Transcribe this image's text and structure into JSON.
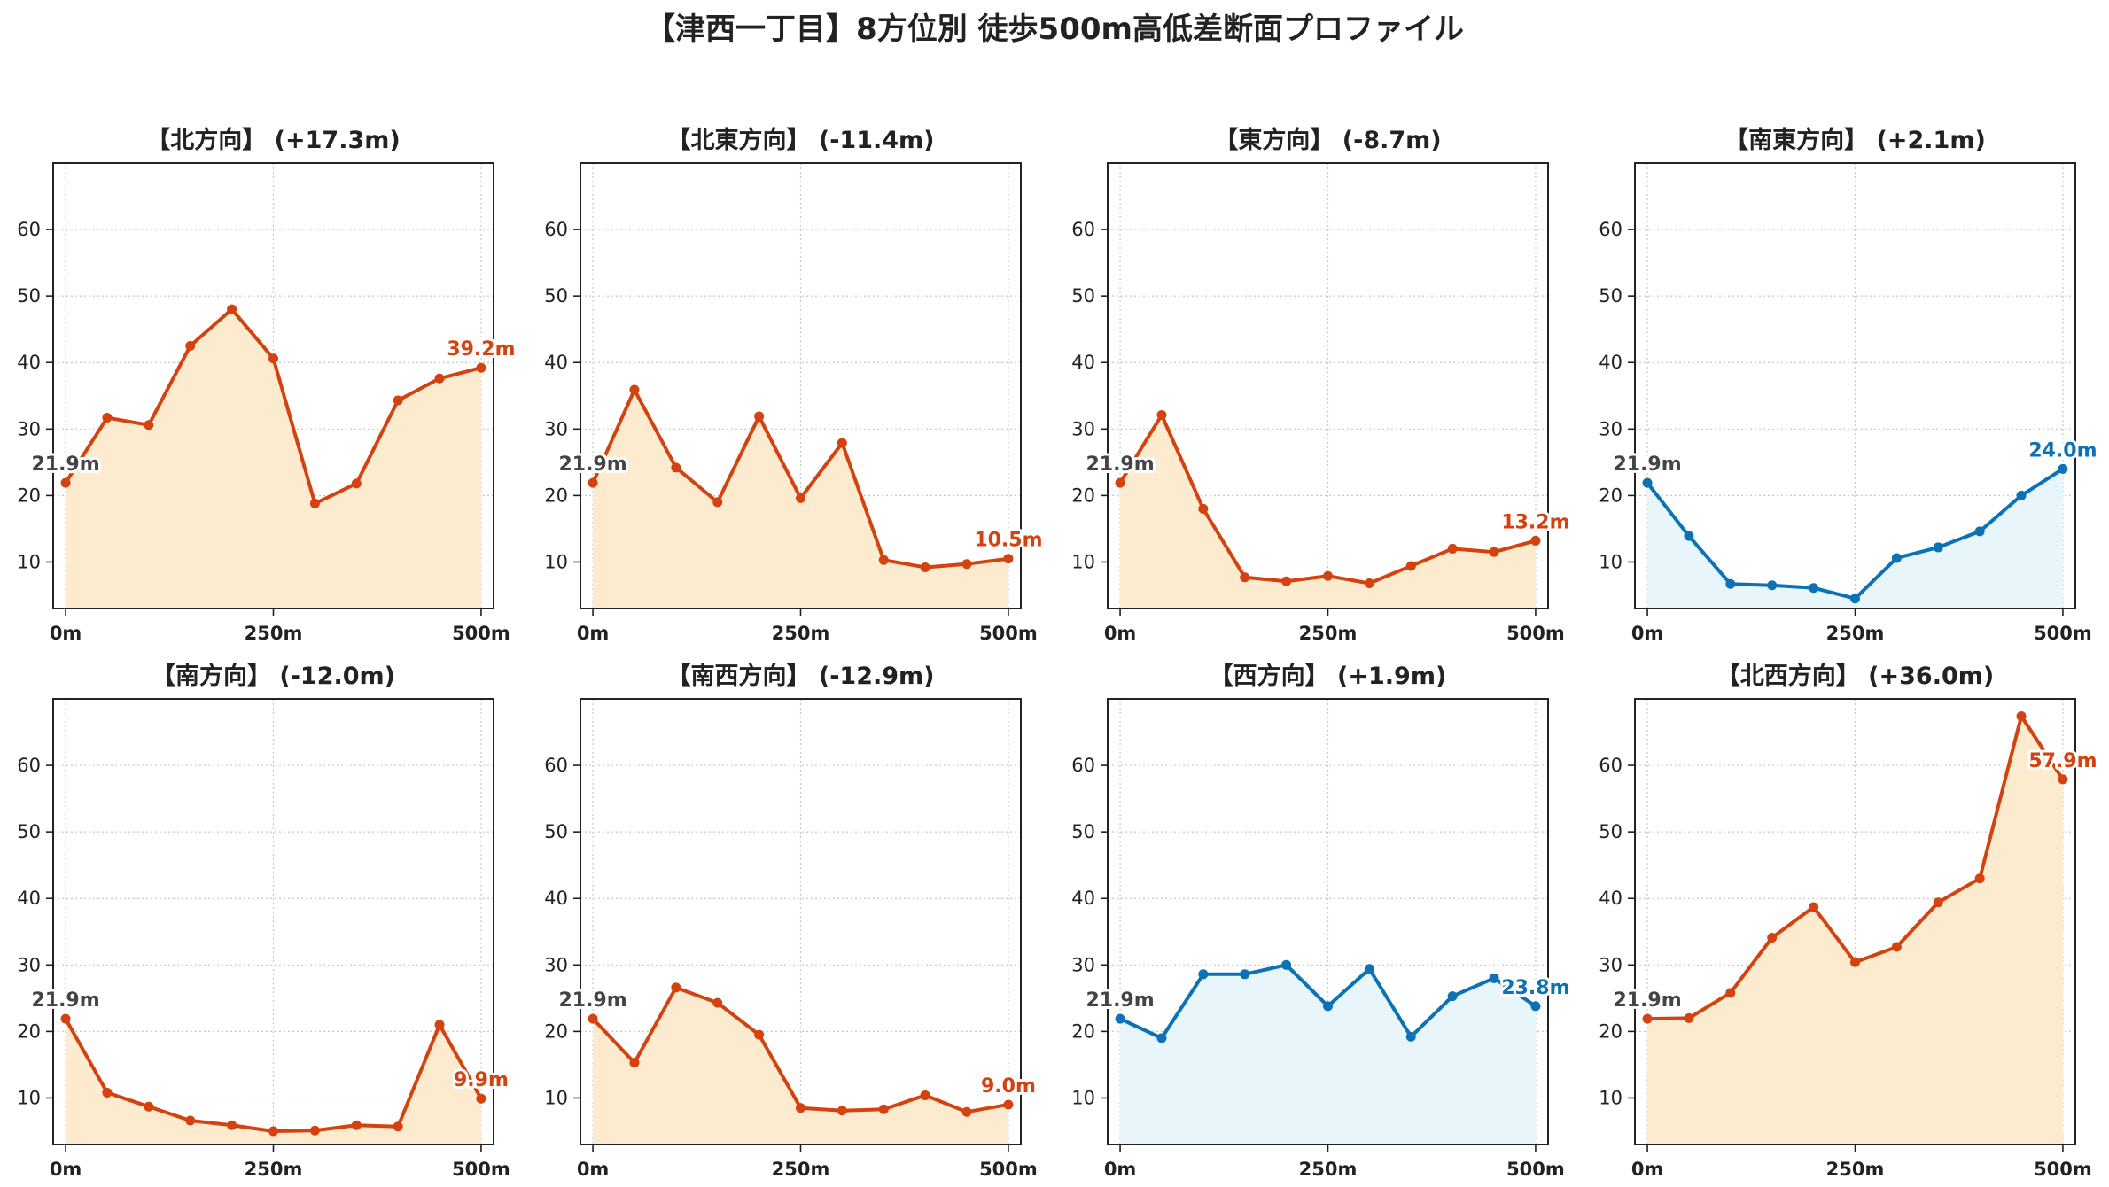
{
  "title": "【津西一丁目】8方位別 徒歩500m高低差断面プロファイル",
  "colors": {
    "up_line": "#d4420f",
    "up_fill": "#fdebd0",
    "down_line": "#0a72b5",
    "down_fill": "#e8f5fb",
    "start_label": "#444444",
    "grid": "#c8c8c8"
  },
  "chart_data": [
    {
      "type": "area",
      "title": "【北方向】 (+17.3m)",
      "x": [
        0,
        50,
        100,
        150,
        200,
        250,
        300,
        350,
        400,
        450,
        500
      ],
      "values": [
        21.9,
        31.7,
        30.6,
        42.5,
        48.0,
        40.6,
        18.8,
        21.8,
        34.3,
        37.6,
        39.2
      ],
      "start_label": "21.9m",
      "end_label": "39.2m",
      "color_scheme": "up",
      "xticks": [
        0,
        250,
        500
      ],
      "xtick_labels": [
        "0m",
        "250m",
        "500m"
      ],
      "yticks": [
        10,
        20,
        30,
        40,
        50,
        60
      ],
      "ylim": [
        3,
        70
      ],
      "xlim": [
        -15,
        515
      ],
      "grid": true
    },
    {
      "type": "area",
      "title": "【北東方向】 (-11.4m)",
      "x": [
        0,
        50,
        100,
        150,
        200,
        250,
        300,
        350,
        400,
        450,
        500
      ],
      "values": [
        21.9,
        35.9,
        24.2,
        19.0,
        31.9,
        19.6,
        27.9,
        10.3,
        9.2,
        9.7,
        10.5
      ],
      "start_label": "21.9m",
      "end_label": "10.5m",
      "color_scheme": "up",
      "xticks": [
        0,
        250,
        500
      ],
      "xtick_labels": [
        "0m",
        "250m",
        "500m"
      ],
      "yticks": [
        10,
        20,
        30,
        40,
        50,
        60
      ],
      "ylim": [
        3,
        70
      ],
      "xlim": [
        -15,
        515
      ],
      "grid": true
    },
    {
      "type": "area",
      "title": "【東方向】 (-8.7m)",
      "x": [
        0,
        50,
        100,
        150,
        200,
        250,
        300,
        350,
        400,
        450,
        500
      ],
      "values": [
        21.9,
        32.1,
        18.0,
        7.7,
        7.1,
        7.9,
        6.8,
        9.4,
        12.0,
        11.5,
        13.2
      ],
      "start_label": "21.9m",
      "end_label": "13.2m",
      "color_scheme": "up",
      "xticks": [
        0,
        250,
        500
      ],
      "xtick_labels": [
        "0m",
        "250m",
        "500m"
      ],
      "yticks": [
        10,
        20,
        30,
        40,
        50,
        60
      ],
      "ylim": [
        3,
        70
      ],
      "xlim": [
        -15,
        515
      ],
      "grid": true
    },
    {
      "type": "area",
      "title": "【南東方向】 (+2.1m)",
      "x": [
        0,
        50,
        100,
        150,
        200,
        250,
        300,
        350,
        400,
        450,
        500
      ],
      "values": [
        21.9,
        13.9,
        6.7,
        6.5,
        6.1,
        4.5,
        10.6,
        12.2,
        14.6,
        20.0,
        24.0
      ],
      "start_label": "21.9m",
      "end_label": "24.0m",
      "color_scheme": "down",
      "xticks": [
        0,
        250,
        500
      ],
      "xtick_labels": [
        "0m",
        "250m",
        "500m"
      ],
      "yticks": [
        10,
        20,
        30,
        40,
        50,
        60
      ],
      "ylim": [
        3,
        70
      ],
      "xlim": [
        -15,
        515
      ],
      "grid": true
    },
    {
      "type": "area",
      "title": "【南方向】 (-12.0m)",
      "x": [
        0,
        50,
        100,
        150,
        200,
        250,
        300,
        350,
        400,
        450,
        500
      ],
      "values": [
        21.9,
        10.8,
        8.7,
        6.6,
        5.9,
        5.0,
        5.1,
        5.9,
        5.7,
        21.0,
        9.9
      ],
      "start_label": "21.9m",
      "end_label": "9.9m",
      "color_scheme": "up",
      "xticks": [
        0,
        250,
        500
      ],
      "xtick_labels": [
        "0m",
        "250m",
        "500m"
      ],
      "yticks": [
        10,
        20,
        30,
        40,
        50,
        60
      ],
      "ylim": [
        3,
        70
      ],
      "xlim": [
        -15,
        515
      ],
      "grid": true
    },
    {
      "type": "area",
      "title": "【南西方向】 (-12.9m)",
      "x": [
        0,
        50,
        100,
        150,
        200,
        250,
        300,
        350,
        400,
        450,
        500
      ],
      "values": [
        21.9,
        15.3,
        26.6,
        24.3,
        19.5,
        8.5,
        8.1,
        8.3,
        10.4,
        7.9,
        9.0
      ],
      "start_label": "21.9m",
      "end_label": "9.0m",
      "color_scheme": "up",
      "xticks": [
        0,
        250,
        500
      ],
      "xtick_labels": [
        "0m",
        "250m",
        "500m"
      ],
      "yticks": [
        10,
        20,
        30,
        40,
        50,
        60
      ],
      "ylim": [
        3,
        70
      ],
      "xlim": [
        -15,
        515
      ],
      "grid": true
    },
    {
      "type": "area",
      "title": "【西方向】 (+1.9m)",
      "x": [
        0,
        50,
        100,
        150,
        200,
        250,
        300,
        350,
        400,
        450,
        500
      ],
      "values": [
        21.9,
        19.0,
        28.6,
        28.6,
        30.0,
        23.8,
        29.4,
        19.2,
        25.3,
        28.0,
        23.8
      ],
      "start_label": "21.9m",
      "end_label": "23.8m",
      "color_scheme": "down",
      "xticks": [
        0,
        250,
        500
      ],
      "xtick_labels": [
        "0m",
        "250m",
        "500m"
      ],
      "yticks": [
        10,
        20,
        30,
        40,
        50,
        60
      ],
      "ylim": [
        3,
        70
      ],
      "xlim": [
        -15,
        515
      ],
      "grid": true
    },
    {
      "type": "area",
      "title": "【北西方向】 (+36.0m)",
      "x": [
        0,
        50,
        100,
        150,
        200,
        250,
        300,
        350,
        400,
        450,
        500
      ],
      "values": [
        21.9,
        22.0,
        25.8,
        34.1,
        38.7,
        30.4,
        32.7,
        39.4,
        43.0,
        67.4,
        57.9
      ],
      "start_label": "21.9m",
      "end_label": "57.9m",
      "color_scheme": "up",
      "xticks": [
        0,
        250,
        500
      ],
      "xtick_labels": [
        "0m",
        "250m",
        "500m"
      ],
      "yticks": [
        10,
        20,
        30,
        40,
        50,
        60
      ],
      "ylim": [
        3,
        70
      ],
      "xlim": [
        -15,
        515
      ],
      "grid": true
    }
  ]
}
